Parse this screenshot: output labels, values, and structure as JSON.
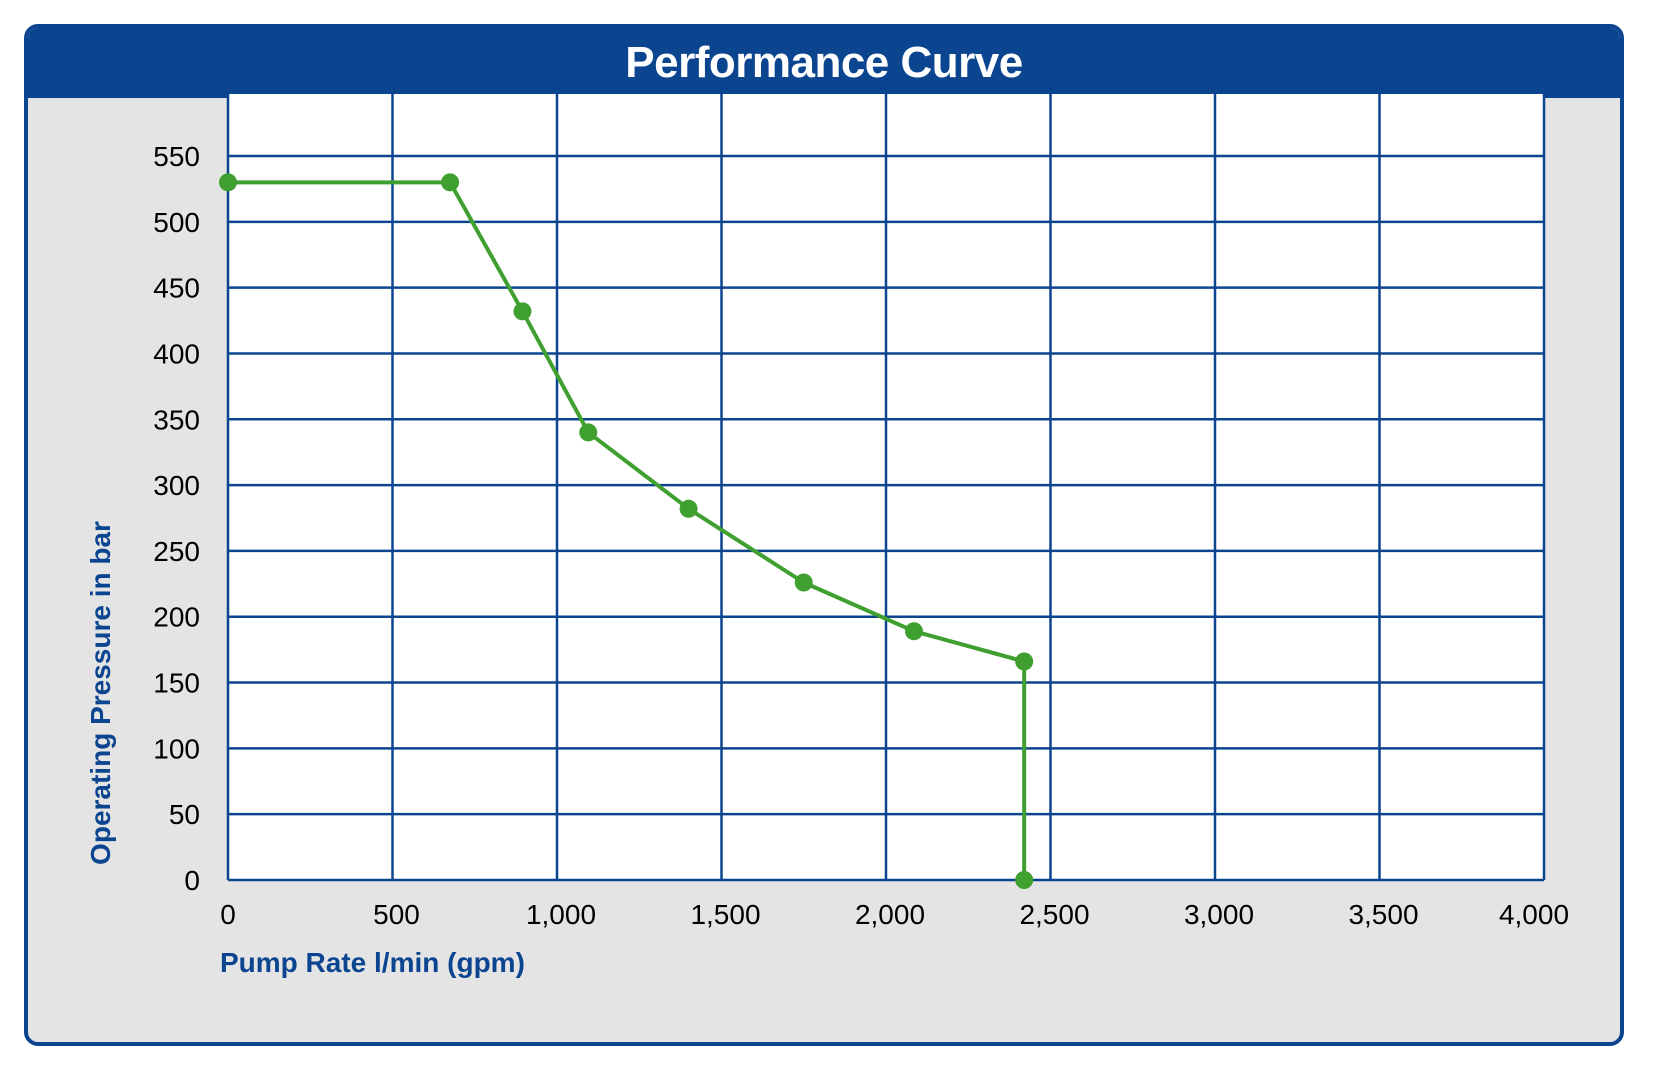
{
  "chart_data": {
    "type": "line",
    "title": "Performance Curve",
    "xlabel": "Pump Rate l/min (gpm)",
    "ylabel": "Operating Pressure in bar",
    "xlim": [
      0,
      4000
    ],
    "ylim": [
      0,
      600
    ],
    "x_ticks": [
      0,
      500,
      1000,
      1500,
      2000,
      2500,
      3000,
      3500,
      4000
    ],
    "x_tick_labels": [
      "0",
      "500",
      "1,000",
      "1,500",
      "2,000",
      "2,500",
      "3,000",
      "3,500",
      "4,000"
    ],
    "y_ticks": [
      0,
      50,
      100,
      150,
      200,
      250,
      300,
      350,
      400,
      450,
      500,
      550
    ],
    "y_tick_labels": [
      "0",
      "50",
      "100",
      "150",
      "200",
      "250",
      "300",
      "350",
      "400",
      "450",
      "500",
      "550"
    ],
    "grid": true,
    "colors": {
      "header": "#0b4590",
      "grid": "#0b4590",
      "line": "#3f9f2f",
      "panel": "#e4e4e4",
      "plot_bg": "#ffffff"
    },
    "series": [
      {
        "x": [
          0,
          675,
          895,
          1095,
          1400,
          1750,
          2085,
          2420,
          2420
        ],
        "y": [
          530,
          530,
          432,
          340,
          282,
          226,
          189,
          166,
          0
        ]
      }
    ]
  }
}
